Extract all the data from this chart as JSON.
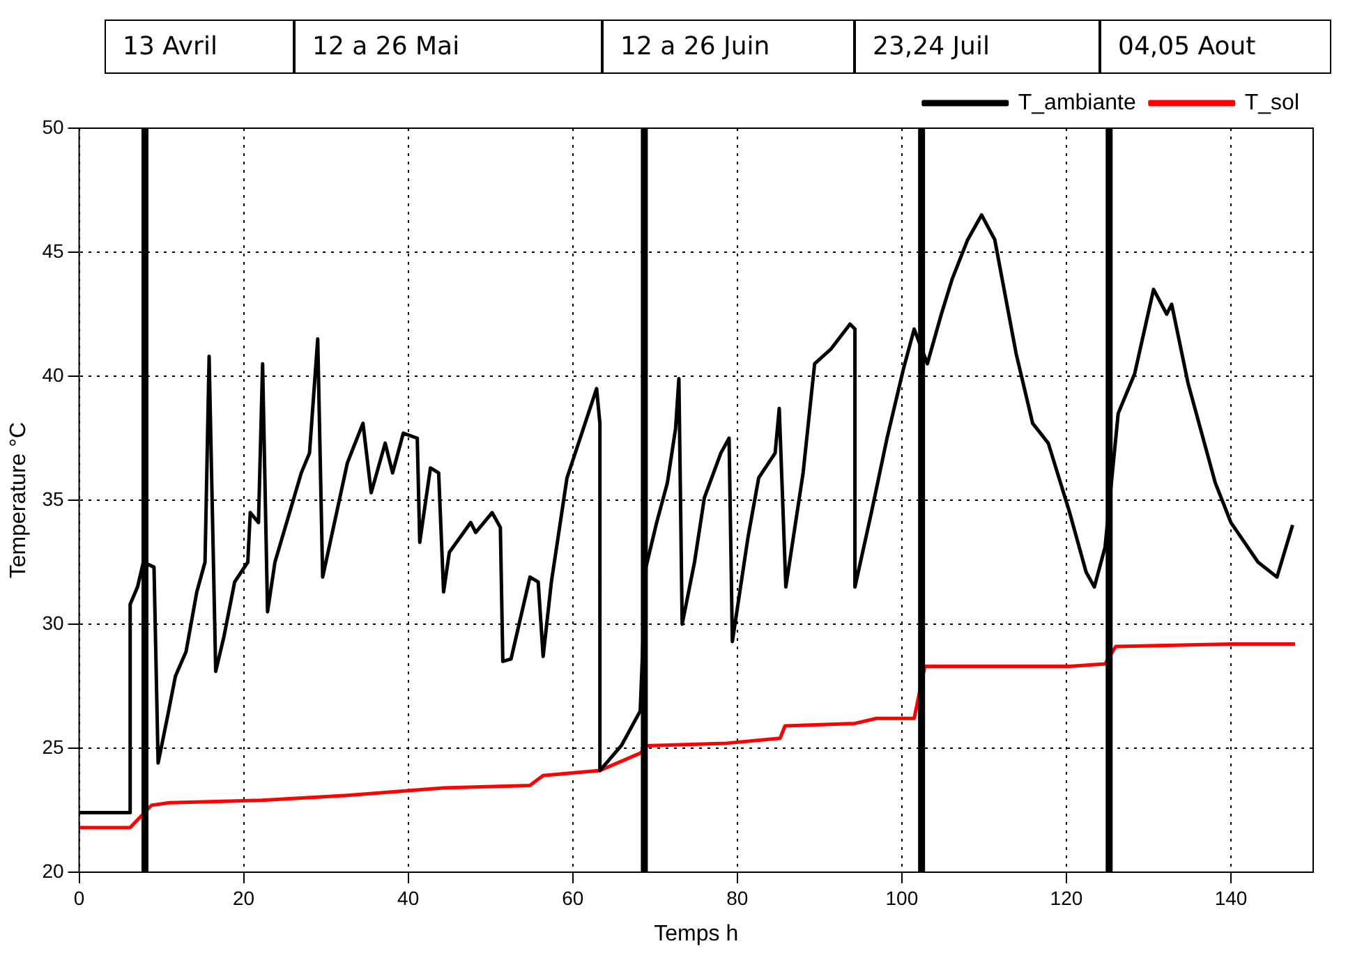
{
  "chart_data": {
    "type": "line",
    "xlabel": "Temps h",
    "ylabel": "Temperature °C",
    "annotations": [
      "13 Avril",
      "12 a 26 Mai",
      "12 a 26 Juin",
      "23,24 Juil",
      "04,05 Aout"
    ],
    "xlim": [
      0,
      150
    ],
    "xticks": [
      0,
      20,
      40,
      60,
      80,
      100,
      120,
      140
    ],
    "ylim": [
      20,
      50
    ],
    "yticks": [
      20,
      25,
      30,
      35,
      40,
      45,
      50
    ],
    "grid": true,
    "legend": "top right",
    "marker": "none",
    "line_style": "solid",
    "ref_lines": [
      {
        "axis": "x",
        "value": 8,
        "color": "#000000"
      },
      {
        "axis": "x",
        "value": 68.7,
        "color": "#000000"
      },
      {
        "axis": "x",
        "value": 102.4,
        "color": "#000000"
      },
      {
        "axis": "x",
        "value": 125.2,
        "color": "#000000"
      }
    ],
    "series": [
      {
        "name": "T_ambiante",
        "color": "#000000",
        "x": [
          0,
          6.2,
          6.2,
          7.1,
          7.8,
          9.1,
          9.6,
          10.7,
          11.7,
          13,
          14.3,
          15.3,
          15.8,
          16.6,
          17.6,
          18.9,
          20.5,
          20.8,
          21.8,
          22.3,
          22.9,
          23.8,
          25.4,
          27,
          28,
          29,
          29.6,
          31.3,
          32.6,
          34.5,
          35.5,
          37.2,
          38.1,
          39.4,
          41.1,
          41.4,
          42.7,
          43.7,
          44.3,
          45,
          47.6,
          48.2,
          50.2,
          51.2,
          51.5,
          52.5,
          54.8,
          55.8,
          56.4,
          57.4,
          59.3,
          61.3,
          62.9,
          63.3,
          63.3,
          65.9,
          68.2,
          68.9,
          70.2,
          71.5,
          72.5,
          72.9,
          73.3,
          74.8,
          76,
          78,
          79,
          79.4,
          81.3,
          82.6,
          84.6,
          85.1,
          85.9,
          88,
          89.4,
          91.4,
          93.7,
          94.3,
          94.3,
          96.3,
          98.2,
          100.2,
          101.5,
          103.1,
          104.8,
          106.1,
          108,
          109.7,
          111.3,
          113.9,
          115.9,
          117.8,
          120.4,
          122.4,
          123.4,
          124.7,
          126.3,
          128.3,
          130.6,
          132.2,
          132.8,
          134.8,
          138.1,
          140,
          143.3,
          145.6,
          147.5
        ],
        "values": [
          22.4,
          22.4,
          30.8,
          31.5,
          32.5,
          32.3,
          24.4,
          26.2,
          27.9,
          28.9,
          31.3,
          32.5,
          40.8,
          28.1,
          29.5,
          31.7,
          32.5,
          34.5,
          34.1,
          40.5,
          30.5,
          32.5,
          34.3,
          36.1,
          36.9,
          41.5,
          31.9,
          34.5,
          36.5,
          38.1,
          35.3,
          37.3,
          36.1,
          37.7,
          37.5,
          33.3,
          36.3,
          36.1,
          31.3,
          32.9,
          34.1,
          33.7,
          34.5,
          33.9,
          28.5,
          28.6,
          31.9,
          31.7,
          28.7,
          31.7,
          35.9,
          37.9,
          39.5,
          38.1,
          24.1,
          25.1,
          26.5,
          32.3,
          34.1,
          35.7,
          37.9,
          39.9,
          30,
          32.5,
          35.1,
          36.9,
          37.5,
          29.3,
          33.5,
          35.9,
          36.9,
          38.7,
          31.5,
          36.1,
          40.5,
          41.1,
          42.1,
          41.9,
          31.5,
          34.5,
          37.5,
          40.3,
          41.9,
          40.5,
          42.5,
          43.9,
          45.5,
          46.5,
          45.5,
          40.9,
          38.1,
          37.3,
          34.5,
          32.1,
          31.5,
          33.1,
          38.5,
          40.1,
          43.5,
          42.5,
          42.9,
          39.7,
          35.7,
          34.1,
          32.5,
          31.9,
          34
        ]
      },
      {
        "name": "T_sol",
        "color": "#ff0000",
        "x": [
          0,
          6.2,
          8.8,
          11,
          22.2,
          32.6,
          44.3,
          54.8,
          56.4,
          63.3,
          68.2,
          69,
          78.7,
          85.2,
          85.8,
          94.3,
          96.9,
          101.5,
          102.8,
          120.4,
          124.7,
          126,
          140,
          147.8
        ],
        "values": [
          21.8,
          21.8,
          22.7,
          22.8,
          22.9,
          23.1,
          23.4,
          23.5,
          23.9,
          24.1,
          24.8,
          25.1,
          25.2,
          25.4,
          25.9,
          26,
          26.2,
          26.2,
          28.3,
          28.3,
          28.4,
          29.1,
          29.2,
          29.2
        ]
      }
    ]
  }
}
